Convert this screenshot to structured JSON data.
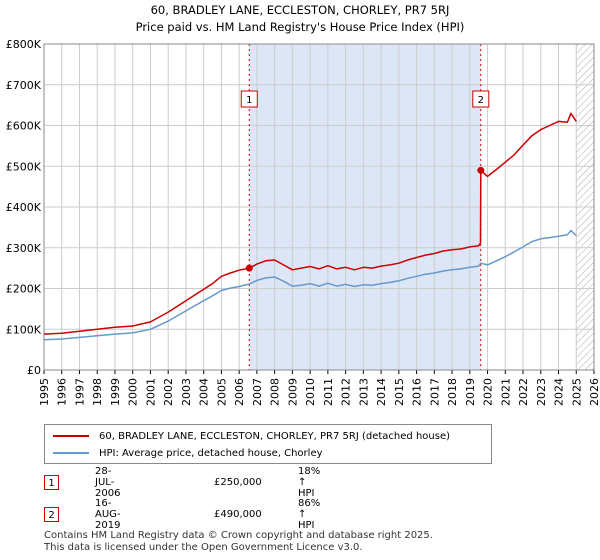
{
  "title_line1": "60, BRADLEY LANE, ECCLESTON, CHORLEY, PR7 5RJ",
  "title_line2": "Price paid vs. HM Land Registry's House Price Index (HPI)",
  "colors": {
    "property": "#cc0000",
    "hpi": "#6699cc",
    "shade": "#dde6f7",
    "grid": "#cccccc"
  },
  "chart_data": {
    "type": "line",
    "xlim": [
      1995,
      2026
    ],
    "ylim": [
      0,
      800000
    ],
    "yticks": [
      {
        "value": 0,
        "label": "£0"
      },
      {
        "value": 100000,
        "label": "£100K"
      },
      {
        "value": 200000,
        "label": "£200K"
      },
      {
        "value": 300000,
        "label": "£300K"
      },
      {
        "value": 400000,
        "label": "£400K"
      },
      {
        "value": 500000,
        "label": "£500K"
      },
      {
        "value": 600000,
        "label": "£600K"
      },
      {
        "value": 700000,
        "label": "£700K"
      },
      {
        "value": 800000,
        "label": "£800K"
      }
    ],
    "xticks": [
      "1995",
      "1996",
      "1997",
      "1998",
      "1999",
      "2000",
      "2001",
      "2002",
      "2003",
      "2004",
      "2005",
      "2006",
      "2007",
      "2008",
      "2009",
      "2010",
      "2011",
      "2012",
      "2013",
      "2014",
      "2015",
      "2016",
      "2017",
      "2018",
      "2019",
      "2020",
      "2021",
      "2022",
      "2023",
      "2024",
      "2025",
      "2026"
    ],
    "shaded_range": [
      2006.57,
      2019.62
    ],
    "hatched_from": 2025.0,
    "series": [
      {
        "name": "60, BRADLEY LANE, ECCLESTON, CHORLEY, PR7 5RJ (detached house)",
        "color": "#cc0000",
        "x": [
          1995.0,
          1996.0,
          1997.0,
          1998.0,
          1999.0,
          2000.0,
          2001.0,
          2002.0,
          2003.0,
          2004.0,
          2004.5,
          2005.0,
          2005.5,
          2006.0,
          2006.57,
          2007.0,
          2007.5,
          2008.0,
          2008.5,
          2009.0,
          2009.5,
          2010.0,
          2010.5,
          2011.0,
          2011.5,
          2012.0,
          2012.5,
          2013.0,
          2013.5,
          2014.0,
          2014.5,
          2015.0,
          2015.5,
          2016.0,
          2016.5,
          2017.0,
          2017.5,
          2018.0,
          2018.5,
          2019.0,
          2019.5,
          2019.6,
          2019.62,
          2020.0,
          2020.5,
          2021.0,
          2021.5,
          2022.0,
          2022.5,
          2023.0,
          2023.5,
          2024.0,
          2024.5,
          2024.7,
          2025.0
        ],
        "y": [
          88000,
          90000,
          95000,
          100000,
          105000,
          108000,
          118000,
          142000,
          170000,
          198000,
          212000,
          230000,
          238000,
          245000,
          250000,
          260000,
          268000,
          270000,
          258000,
          246000,
          250000,
          254000,
          248000,
          256000,
          248000,
          252000,
          246000,
          252000,
          250000,
          255000,
          258000,
          262000,
          270000,
          276000,
          282000,
          286000,
          292000,
          295000,
          297000,
          302000,
          305000,
          312000,
          490000,
          475000,
          492000,
          510000,
          528000,
          552000,
          575000,
          590000,
          600000,
          610000,
          608000,
          630000,
          610000
        ]
      },
      {
        "name": "HPI: Average price, detached house, Chorley",
        "color": "#6699cc",
        "x": [
          1995.0,
          1996.0,
          1997.0,
          1998.0,
          1999.0,
          2000.0,
          2001.0,
          2002.0,
          2003.0,
          2004.0,
          2004.5,
          2005.0,
          2005.5,
          2006.0,
          2006.57,
          2007.0,
          2007.5,
          2008.0,
          2008.5,
          2009.0,
          2009.5,
          2010.0,
          2010.5,
          2011.0,
          2011.5,
          2012.0,
          2012.5,
          2013.0,
          2013.5,
          2014.0,
          2014.5,
          2015.0,
          2015.5,
          2016.0,
          2016.5,
          2017.0,
          2017.5,
          2018.0,
          2018.5,
          2019.0,
          2019.5,
          2019.62,
          2020.0,
          2020.5,
          2021.0,
          2021.5,
          2022.0,
          2022.5,
          2023.0,
          2023.5,
          2024.0,
          2024.5,
          2024.7,
          2025.0
        ],
        "y": [
          74000,
          76000,
          80000,
          84000,
          88000,
          91000,
          100000,
          120000,
          145000,
          170000,
          182000,
          195000,
          201000,
          205000,
          211000,
          220000,
          226000,
          228000,
          218000,
          206000,
          208000,
          212000,
          206000,
          213000,
          206000,
          210000,
          205000,
          209000,
          208000,
          212000,
          215000,
          219000,
          225000,
          230000,
          235000,
          238000,
          243000,
          246000,
          248000,
          252000,
          255000,
          262000,
          258000,
          268000,
          278000,
          290000,
          302000,
          315000,
          322000,
          325000,
          328000,
          332000,
          342000,
          330000
        ]
      }
    ],
    "markers": [
      {
        "label": "1",
        "x": 2006.57,
        "y": 250000,
        "box_y": 665000
      },
      {
        "label": "2",
        "x": 2019.62,
        "y": 490000,
        "box_y": 665000
      }
    ]
  },
  "legend": {
    "property_label": "60, BRADLEY LANE, ECCLESTON, CHORLEY, PR7 5RJ (detached house)",
    "hpi_label": "HPI: Average price, detached house, Chorley"
  },
  "transactions": [
    {
      "num": "1",
      "date": "28-JUL-2006",
      "price": "£250,000",
      "hpi": "18% ↑ HPI"
    },
    {
      "num": "2",
      "date": "16-AUG-2019",
      "price": "£490,000",
      "hpi": "86% ↑ HPI"
    }
  ],
  "footer_line1": "Contains HM Land Registry data © Crown copyright and database right 2025.",
  "footer_line2": "This data is licensed under the Open Government Licence v3.0."
}
